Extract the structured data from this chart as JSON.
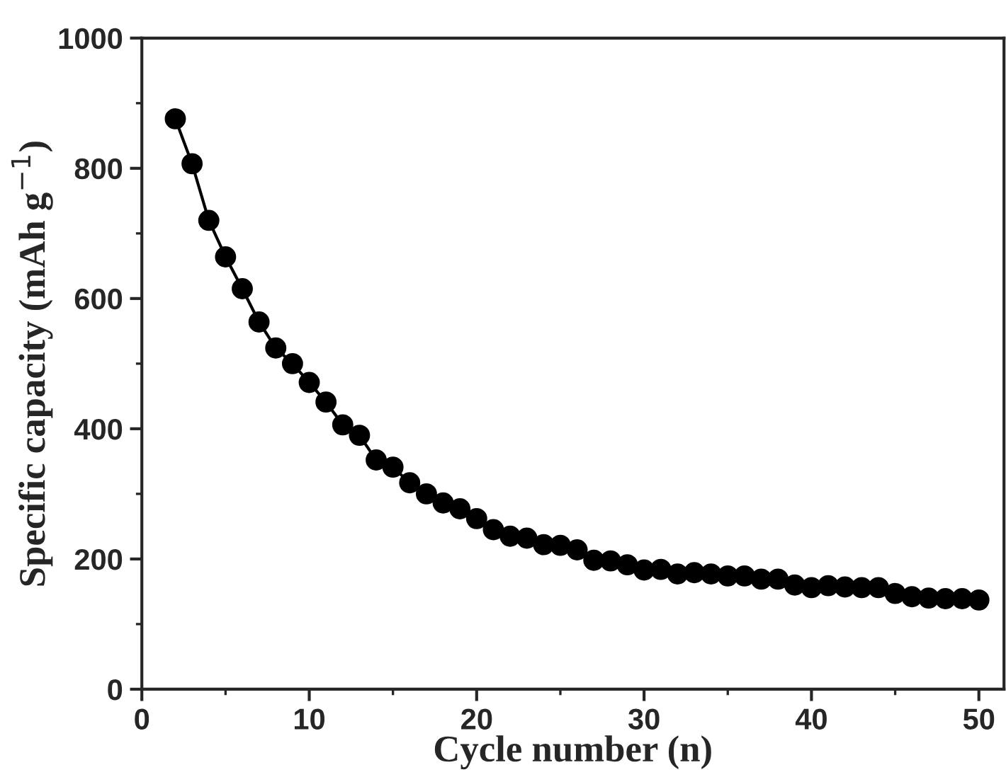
{
  "chart_data": {
    "type": "line",
    "xlabel": "Cycle number (n)",
    "ylabel": "Specific capacity (mAh g$^{−1}$)",
    "x": [
      2,
      3,
      4,
      5,
      6,
      7,
      8,
      9,
      10,
      11,
      12,
      13,
      14,
      15,
      16,
      17,
      18,
      19,
      20,
      21,
      22,
      23,
      24,
      25,
      26,
      27,
      28,
      29,
      30,
      31,
      32,
      33,
      34,
      35,
      36,
      37,
      38,
      39,
      40,
      41,
      42,
      43,
      44,
      45,
      46,
      47,
      48,
      49,
      50
    ],
    "series": [
      {
        "color": "#000000",
        "values": [
          876,
          807,
          720,
          664,
          615,
          564,
          524,
          500,
          471,
          441,
          406,
          390,
          352,
          341,
          317,
          300,
          286,
          277,
          262,
          245,
          235,
          232,
          222,
          221,
          214,
          198,
          197,
          191,
          183,
          184,
          177,
          179,
          177,
          174,
          174,
          169,
          169,
          160,
          156,
          159,
          157,
          156,
          156,
          147,
          142,
          140,
          139,
          139,
          137
        ]
      }
    ],
    "marker": "circle",
    "line_style": "solid",
    "grid": false,
    "legend": false,
    "xlim": [
      0,
      51.5
    ],
    "xticks": [
      0,
      10,
      20,
      30,
      40,
      50
    ],
    "ylim": [
      0,
      1000
    ],
    "yticks": [
      0,
      200,
      400,
      600,
      800,
      1000
    ]
  }
}
